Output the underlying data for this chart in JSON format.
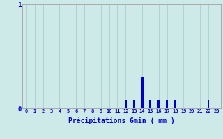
{
  "xlabel": "Précipitations 6min ( mm )",
  "background_color": "#ceeae8",
  "bar_color": "#0000cc",
  "grid_color": "#aad4d0",
  "axis_color": "#aaaaaa",
  "text_color": "#0000cc",
  "xlim": [
    -0.5,
    23.5
  ],
  "ylim": [
    0,
    1.0
  ],
  "yticks": [
    0,
    1
  ],
  "xtick_labels": [
    "0",
    "1",
    "2",
    "3",
    "4",
    "5",
    "6",
    "7",
    "8",
    "9",
    "10",
    "11",
    "12",
    "13",
    "14",
    "15",
    "16",
    "17",
    "18",
    "19",
    "20",
    "21",
    "22",
    "23"
  ],
  "hours": [
    0,
    1,
    2,
    3,
    4,
    5,
    6,
    7,
    8,
    9,
    10,
    11,
    12,
    13,
    14,
    15,
    16,
    17,
    18,
    19,
    20,
    21,
    22,
    23
  ],
  "values": [
    0,
    0,
    0,
    0,
    0,
    0,
    0,
    0,
    0,
    0,
    0,
    0,
    0.08,
    0.08,
    0.3,
    0.08,
    0.08,
    0.08,
    0.08,
    0,
    0,
    0,
    0.08,
    0
  ]
}
